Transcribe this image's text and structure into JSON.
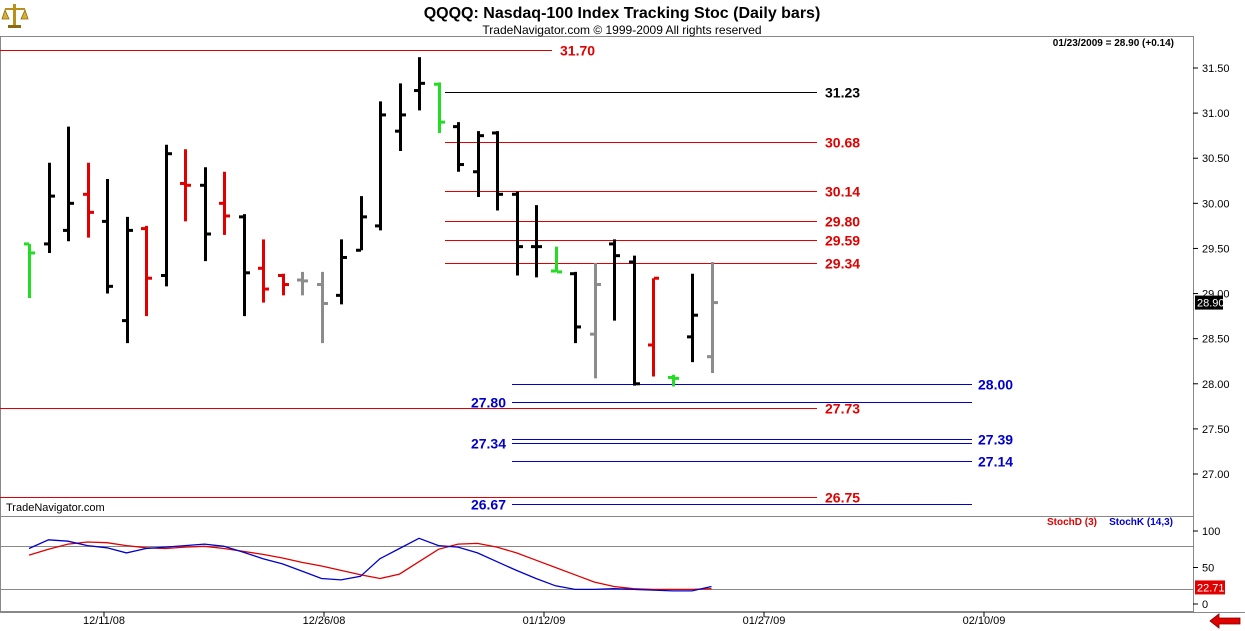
{
  "header": {
    "title": "QQQQ:  Nasdaq-100 Index Tracking Stoc  (Daily bars)",
    "copyright": "TradeNavigator.com © 1999-2009 All rights reserved",
    "quote_readout": "01/23/2009 = 28.90 (+0.14)",
    "watermark": "TradeNavigator.com",
    "logo_icon": "scales-of-justice-icon",
    "back_icon": "red-left-arrow-icon"
  },
  "colors": {
    "up_bar": "#000000",
    "down_bar": "#e00000",
    "neutral_bar": "#8c8c8c",
    "highlight_bar": "#22dd22",
    "red_level": "#e00000",
    "blue_level": "#0000cc",
    "black_level": "#000000",
    "stoch_d": "#e00000",
    "stoch_k": "#0000cc"
  },
  "chart_data": [
    {
      "type": "ohlc",
      "price_axis": {
        "ylim": [
          26.55,
          31.75
        ],
        "ticks": [
          "31.50",
          "31.00",
          "30.50",
          "30.00",
          "29.50",
          "29.00",
          "28.50",
          "28.00",
          "27.50",
          "27.00"
        ],
        "current_price_label": "28.90"
      },
      "date_axis": {
        "ticks": [
          "12/11/08",
          "12/26/08",
          "01/12/09",
          "01/27/09",
          "02/10/09"
        ]
      },
      "bars": [
        {
          "o": 29.55,
          "h": 29.45,
          "l": 28.95,
          "c": 29.45,
          "color": "highlight"
        },
        {
          "o": 29.55,
          "h": 30.45,
          "l": 29.45,
          "c": 30.08,
          "color": "up"
        },
        {
          "o": 29.7,
          "h": 30.85,
          "l": 29.58,
          "c": 30.0,
          "color": "up"
        },
        {
          "o": 30.1,
          "h": 30.45,
          "l": 29.62,
          "c": 29.9,
          "color": "down"
        },
        {
          "o": 29.8,
          "h": 30.27,
          "l": 29.0,
          "c": 29.08,
          "color": "up"
        },
        {
          "o": 28.7,
          "h": 29.85,
          "l": 28.45,
          "c": 29.7,
          "color": "up"
        },
        {
          "o": 29.72,
          "h": 29.75,
          "l": 28.75,
          "c": 29.17,
          "color": "down"
        },
        {
          "o": 29.2,
          "h": 30.65,
          "l": 29.08,
          "c": 30.55,
          "color": "up"
        },
        {
          "o": 30.22,
          "h": 30.6,
          "l": 29.8,
          "c": 30.2,
          "color": "down"
        },
        {
          "o": 30.2,
          "h": 30.4,
          "l": 29.36,
          "c": 29.66,
          "color": "up"
        },
        {
          "o": 30.0,
          "h": 30.35,
          "l": 29.65,
          "c": 29.86,
          "color": "down"
        },
        {
          "o": 29.85,
          "h": 29.88,
          "l": 28.75,
          "c": 29.23,
          "color": "up"
        },
        {
          "o": 29.28,
          "h": 29.6,
          "l": 28.9,
          "c": 29.05,
          "color": "down"
        },
        {
          "o": 29.2,
          "h": 29.22,
          "l": 28.98,
          "c": 29.1,
          "color": "down"
        },
        {
          "o": 29.15,
          "h": 29.24,
          "l": 28.98,
          "c": 29.14,
          "color": "neutral"
        },
        {
          "o": 29.1,
          "h": 29.24,
          "l": 28.45,
          "c": 28.89,
          "color": "neutral"
        },
        {
          "o": 28.98,
          "h": 29.6,
          "l": 28.88,
          "c": 29.4,
          "color": "up"
        },
        {
          "o": 29.48,
          "h": 30.08,
          "l": 29.48,
          "c": 29.85,
          "color": "up"
        },
        {
          "o": 29.75,
          "h": 31.13,
          "l": 29.7,
          "c": 30.98,
          "color": "up"
        },
        {
          "o": 30.8,
          "h": 31.33,
          "l": 30.58,
          "c": 30.98,
          "color": "up"
        },
        {
          "o": 31.25,
          "h": 31.62,
          "l": 31.03,
          "c": 31.33,
          "color": "up"
        },
        {
          "o": 31.32,
          "h": 31.34,
          "l": 30.78,
          "c": 30.9,
          "color": "highlight"
        },
        {
          "o": 30.85,
          "h": 30.9,
          "l": 30.35,
          "c": 30.43,
          "color": "up"
        },
        {
          "o": 30.35,
          "h": 30.8,
          "l": 30.07,
          "c": 30.75,
          "color": "up"
        },
        {
          "o": 30.78,
          "h": 30.8,
          "l": 29.92,
          "c": 30.1,
          "color": "up"
        },
        {
          "o": 30.1,
          "h": 30.13,
          "l": 29.2,
          "c": 29.52,
          "color": "up"
        },
        {
          "o": 29.52,
          "h": 29.98,
          "l": 29.18,
          "c": 29.52,
          "color": "up"
        },
        {
          "o": 29.25,
          "h": 29.52,
          "l": 29.25,
          "c": 29.24,
          "color": "highlight"
        },
        {
          "o": 29.22,
          "h": 29.24,
          "l": 28.45,
          "c": 28.63,
          "color": "up"
        },
        {
          "o": 28.55,
          "h": 29.34,
          "l": 28.06,
          "c": 29.1,
          "color": "neutral"
        },
        {
          "o": 29.55,
          "h": 29.6,
          "l": 28.7,
          "c": 29.42,
          "color": "up"
        },
        {
          "o": 29.35,
          "h": 29.42,
          "l": 27.98,
          "c": 28.0,
          "color": "up"
        },
        {
          "o": 28.43,
          "h": 29.17,
          "l": 28.08,
          "c": 29.17,
          "color": "down"
        },
        {
          "o": 28.07,
          "h": 28.1,
          "l": 27.97,
          "c": 28.06,
          "color": "highlight"
        },
        {
          "o": 28.52,
          "h": 29.22,
          "l": 28.24,
          "c": 28.76,
          "color": "up"
        },
        {
          "o": 28.3,
          "h": 29.35,
          "l": 28.12,
          "c": 28.9,
          "color": "neutral"
        }
      ],
      "levels": [
        {
          "value": 31.7,
          "label": "31.70",
          "color": "red",
          "label_side": "right"
        },
        {
          "value": 31.23,
          "label": "31.23",
          "color": "black",
          "label_side": "right"
        },
        {
          "value": 30.68,
          "label": "30.68",
          "color": "red",
          "label_side": "right"
        },
        {
          "value": 30.14,
          "label": "30.14",
          "color": "red",
          "label_side": "right"
        },
        {
          "value": 29.8,
          "label": "29.80",
          "color": "red",
          "label_side": "right"
        },
        {
          "value": 29.59,
          "label": "29.59",
          "color": "red",
          "label_side": "right"
        },
        {
          "value": 29.34,
          "label": "29.34",
          "color": "red",
          "label_side": "right"
        },
        {
          "value": 28.0,
          "label": "28.00",
          "color": "blue",
          "label_side": "right"
        },
        {
          "value": 27.8,
          "label": "27.80",
          "color": "blue",
          "label_side": "left"
        },
        {
          "value": 27.73,
          "label": "27.73",
          "color": "red",
          "label_side": "right"
        },
        {
          "value": 27.39,
          "label": "27.39",
          "color": "blue",
          "label_side": "right"
        },
        {
          "value": 27.34,
          "label": "27.34",
          "color": "blue",
          "label_side": "left"
        },
        {
          "value": 27.14,
          "label": "27.14",
          "color": "blue",
          "label_side": "right"
        },
        {
          "value": 26.75,
          "label": "26.75",
          "color": "red",
          "label_side": "right"
        },
        {
          "value": 26.67,
          "label": "26.67",
          "color": "blue",
          "label_side": "left"
        }
      ]
    },
    {
      "type": "line",
      "legend": [
        "StochD (3)",
        "StochK (14,3)"
      ],
      "ylim": [
        0,
        100
      ],
      "ticks": [
        "100",
        "50",
        "0"
      ],
      "reference_lines": [
        80,
        20
      ],
      "current_value_label": "22.71",
      "series": [
        {
          "name": "StochD (3)",
          "color": "red",
          "values": [
            67,
            75,
            82,
            85,
            84,
            80,
            77,
            76,
            78,
            79,
            76,
            72,
            68,
            63,
            57,
            52,
            46,
            40,
            35,
            41,
            58,
            75,
            82,
            83,
            78,
            70,
            60,
            50,
            40,
            30,
            24,
            21,
            20,
            20,
            20,
            21
          ]
        },
        {
          "name": "StochK (14,3)",
          "color": "blue",
          "values": [
            76,
            88,
            86,
            80,
            77,
            70,
            76,
            78,
            80,
            82,
            79,
            71,
            62,
            55,
            45,
            35,
            33,
            38,
            62,
            76,
            90,
            80,
            78,
            70,
            58,
            46,
            35,
            25,
            20,
            20,
            21,
            20,
            19,
            18,
            18,
            24
          ]
        }
      ]
    }
  ]
}
